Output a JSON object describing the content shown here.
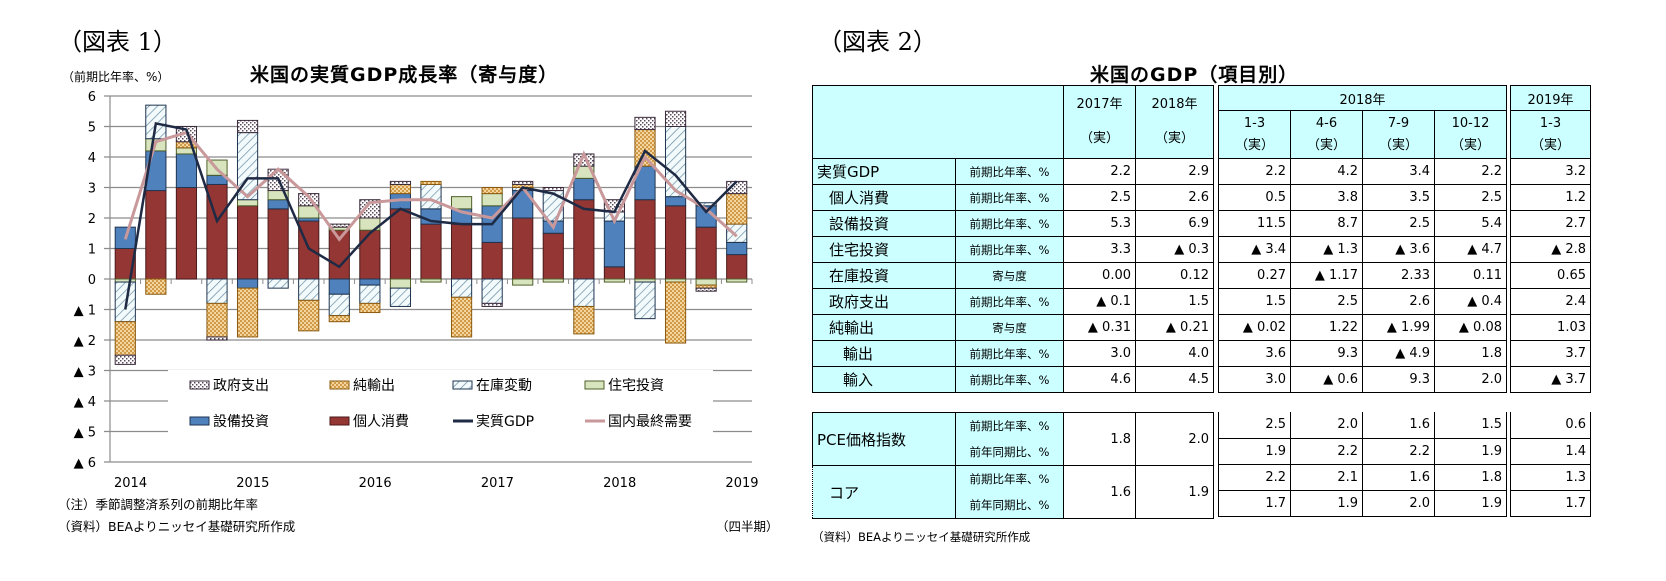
{
  "figure1": {
    "label": "（図表 1）",
    "title": "米国の実質GDP成長率（寄与度）",
    "y_unit": "（前期比年率、%）",
    "x_unit": "（四半期）",
    "note": "（注）季節調整済系列の前期比年率",
    "source": "（資料）BEAよりニッセイ基礎研究所作成",
    "y_ticks": [
      "6",
      "5",
      "4",
      "3",
      "2",
      "1",
      "0",
      "▲ 1",
      "▲ 2",
      "▲ 3",
      "▲ 4",
      "▲ 5",
      "▲ 6"
    ],
    "x_ticks": [
      "2014",
      "2015",
      "2016",
      "2017",
      "2018",
      "2019"
    ],
    "legend": {
      "gov": "政府支出",
      "netexp": "純輸出",
      "inv": "在庫変動",
      "res": "住宅投資",
      "capex": "設備投資",
      "cons": "個人消費",
      "gdp": "実質GDP",
      "fdd": "国内最終需要"
    }
  },
  "figure2": {
    "label": "（図表 2）",
    "title": "米国のGDP（項目別）",
    "source": "（資料）BEAよりニッセイ基礎研究所作成",
    "header": {
      "y2017": "2017年",
      "y2018": "2018年",
      "jitsu": "（実）",
      "group2018": "2018年",
      "group2019": "2019年",
      "q1": "1-3",
      "q2": "4-6",
      "q3": "7-9",
      "q4": "10-12",
      "q2019": "1-3"
    },
    "units": {
      "qoq": "前期比年率、%",
      "contrib": "寄与度",
      "yoy": "前年同期比、%"
    },
    "rows": [
      {
        "label": "実質GDP",
        "unit": "前期比年率、%",
        "v": [
          "2.2",
          "2.9",
          "2.2",
          "4.2",
          "3.4",
          "2.2",
          "3.2"
        ]
      },
      {
        "label": "個人消費",
        "unit": "前期比年率、%",
        "v": [
          "2.5",
          "2.6",
          "0.5",
          "3.8",
          "3.5",
          "2.5",
          "1.2"
        ]
      },
      {
        "label": "設備投資",
        "unit": "前期比年率、%",
        "v": [
          "5.3",
          "6.9",
          "11.5",
          "8.7",
          "2.5",
          "5.4",
          "2.7"
        ]
      },
      {
        "label": "住宅投資",
        "unit": "前期比年率、%",
        "v": [
          "3.3",
          "▲ 0.3",
          "▲ 3.4",
          "▲ 1.3",
          "▲ 3.6",
          "▲ 4.7",
          "▲ 2.8"
        ]
      },
      {
        "label": "在庫投資",
        "unit": "寄与度",
        "v": [
          "0.00",
          "0.12",
          "0.27",
          "▲ 1.17",
          "2.33",
          "0.11",
          "0.65"
        ]
      },
      {
        "label": "政府支出",
        "unit": "前期比年率、%",
        "v": [
          "▲ 0.1",
          "1.5",
          "1.5",
          "2.5",
          "2.6",
          "▲ 0.4",
          "2.4"
        ]
      },
      {
        "label": "純輸出",
        "unit": "寄与度",
        "v": [
          "▲ 0.31",
          "▲ 0.21",
          "▲ 0.02",
          "1.22",
          "▲ 1.99",
          "▲ 0.08",
          "1.03"
        ]
      },
      {
        "label": "輸出",
        "unit": "前期比年率、%",
        "v": [
          "3.0",
          "4.0",
          "3.6",
          "9.3",
          "▲ 4.9",
          "1.8",
          "3.7"
        ]
      },
      {
        "label": "輸入",
        "unit": "前期比年率、%",
        "v": [
          "4.6",
          "4.5",
          "3.0",
          "▲ 0.6",
          "9.3",
          "2.0",
          "▲ 3.7"
        ]
      }
    ],
    "pce": {
      "label": "PCE価格指数",
      "annual": [
        "1.8",
        "2.0"
      ],
      "qoq": [
        "2.5",
        "2.0",
        "1.6",
        "1.5",
        "0.6"
      ],
      "yoy": [
        "1.9",
        "2.2",
        "2.2",
        "1.9",
        "1.4"
      ]
    },
    "core": {
      "label": "コア",
      "annual": [
        "1.6",
        "1.9"
      ],
      "qoq": [
        "2.2",
        "2.1",
        "1.6",
        "1.8",
        "1.3"
      ],
      "yoy": [
        "1.7",
        "1.9",
        "2.0",
        "1.9",
        "1.7"
      ]
    }
  },
  "chart_data": {
    "type": "bar",
    "title": "米国の実質GDP成長率（寄与度）",
    "xlabel": "（四半期）",
    "ylabel": "（前期比年率、%）",
    "ylim": [
      -6,
      6
    ],
    "grid": true,
    "legend_position": "inside-bottom",
    "categories": [
      "2014Q1",
      "2014Q2",
      "2014Q3",
      "2014Q4",
      "2015Q1",
      "2015Q2",
      "2015Q3",
      "2015Q4",
      "2016Q1",
      "2016Q2",
      "2016Q3",
      "2016Q4",
      "2017Q1",
      "2017Q2",
      "2017Q3",
      "2017Q4",
      "2018Q1",
      "2018Q2",
      "2018Q3",
      "2018Q4",
      "2019Q1"
    ],
    "series": [
      {
        "name": "個人消費",
        "type": "stacked-bar",
        "color": "#943634",
        "values": [
          1.0,
          2.9,
          3.0,
          3.1,
          2.4,
          2.3,
          1.9,
          1.6,
          1.6,
          2.3,
          1.8,
          1.8,
          1.2,
          2.0,
          1.5,
          2.6,
          0.4,
          2.6,
          2.4,
          1.7,
          0.8
        ]
      },
      {
        "name": "設備投資",
        "type": "stacked-bar",
        "color": "#4f81bd",
        "values": [
          0.7,
          1.3,
          1.1,
          0.3,
          -0.3,
          0.3,
          0.1,
          -0.5,
          -0.2,
          0.5,
          0.5,
          0.5,
          1.2,
          0.9,
          0.4,
          0.7,
          1.5,
          1.1,
          0.3,
          0.7,
          0.4
        ]
      },
      {
        "name": "住宅投資",
        "type": "stacked-bar",
        "color": "#d7e4bd",
        "values": [
          -0.1,
          0.4,
          0.2,
          0.5,
          0.2,
          0.3,
          0.4,
          0.1,
          0.4,
          -0.3,
          -0.1,
          0.4,
          0.4,
          -0.2,
          -0.1,
          0.4,
          -0.1,
          -0.1,
          -0.1,
          -0.2,
          -0.1
        ]
      },
      {
        "name": "在庫変動",
        "type": "stacked-bar",
        "color": "#dbeef3",
        "values": [
          -1.3,
          1.1,
          0.0,
          -0.8,
          2.2,
          -0.3,
          -0.7,
          -0.7,
          -0.6,
          -0.6,
          0.8,
          -0.6,
          -0.8,
          0.1,
          1.0,
          -0.9,
          0.3,
          -1.2,
          2.3,
          0.1,
          0.6
        ]
      },
      {
        "name": "純輸出",
        "type": "stacked-bar",
        "color": "#e6b86a",
        "values": [
          -1.1,
          -0.5,
          0.2,
          -1.1,
          -1.6,
          0.0,
          -1.0,
          -0.2,
          -0.3,
          0.3,
          0.1,
          -1.3,
          0.2,
          0.1,
          0.0,
          -0.9,
          0.0,
          1.2,
          -2.0,
          -0.1,
          1.0
        ]
      },
      {
        "name": "政府支出",
        "type": "stacked-bar",
        "color": "#ffffff",
        "values": [
          -0.3,
          0.0,
          0.5,
          -0.1,
          0.4,
          0.7,
          0.4,
          0.1,
          0.6,
          0.1,
          0.0,
          0.0,
          -0.1,
          0.1,
          0.1,
          0.4,
          0.4,
          0.4,
          0.5,
          -0.1,
          0.4
        ]
      },
      {
        "name": "実質GDP",
        "type": "line",
        "color": "#1f2a44",
        "values": [
          -1.0,
          5.1,
          4.9,
          1.9,
          3.3,
          3.3,
          1.0,
          0.4,
          1.5,
          2.3,
          1.9,
          1.8,
          1.8,
          3.0,
          2.8,
          2.3,
          2.2,
          4.2,
          3.4,
          2.2,
          3.2
        ]
      },
      {
        "name": "国内最終需要",
        "type": "line",
        "color": "#c9989a",
        "values": [
          1.3,
          4.5,
          4.8,
          3.6,
          2.7,
          3.6,
          2.7,
          1.3,
          2.5,
          2.6,
          2.6,
          2.2,
          2.0,
          3.0,
          1.7,
          4.1,
          1.9,
          4.0,
          2.9,
          2.3,
          1.4
        ]
      }
    ]
  }
}
